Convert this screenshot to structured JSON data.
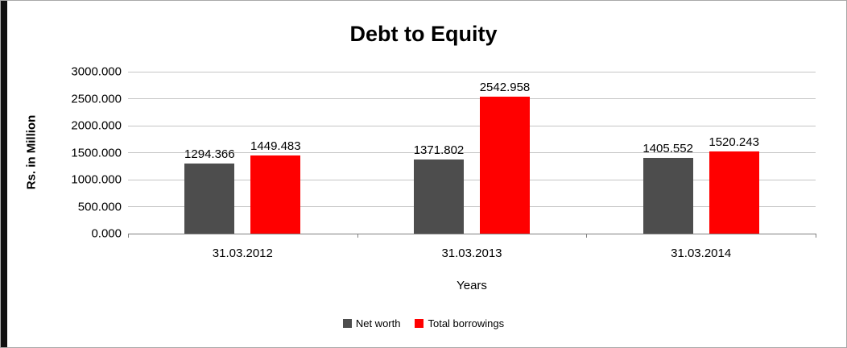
{
  "chart_data": {
    "type": "bar",
    "title": "Debt to Equity",
    "xlabel": "Years",
    "ylabel": "Rs. in Million",
    "categories": [
      "31.03.2012",
      "31.03.2013",
      "31.03.2014"
    ],
    "series": [
      {
        "name": "Net worth",
        "color": "#4d4d4d",
        "values": [
          1294.366,
          1371.802,
          1405.552
        ],
        "labels": [
          "1294.366",
          "1371.802",
          "1405.552"
        ]
      },
      {
        "name": "Total borrowings",
        "color": "#ff0000",
        "values": [
          1449.483,
          2542.958,
          1520.243
        ],
        "labels": [
          "1449.483",
          "2542.958",
          "1520.243"
        ]
      }
    ],
    "ylim": [
      0,
      3000
    ],
    "ytick_step": 500,
    "yticks": [
      "0.000",
      "500.000",
      "1000.000",
      "1500.000",
      "2000.000",
      "2500.000",
      "3000.000"
    ],
    "grid": "horizontal",
    "legend_position": "bottom"
  }
}
